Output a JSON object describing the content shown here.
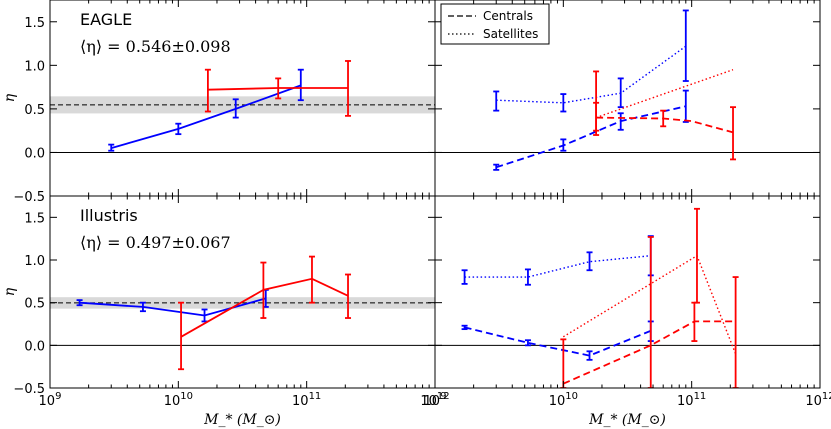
{
  "colors": {
    "blue": "#0000ff",
    "red": "#ff0000",
    "band": "#d9d9d9",
    "axis": "#000000"
  },
  "legend": {
    "centrals": "Centrals",
    "satellites": "Satellites"
  },
  "chart_data": {
    "type": "line",
    "x_scale": "log",
    "xlim": [
      1000000000.0,
      1000000000000.0
    ],
    "ylim": [
      -0.5,
      1.75
    ],
    "x_tick_labels": [
      "10^9",
      "10^10",
      "10^11",
      "10^12"
    ],
    "xlabel": "M_* (M_⊙)",
    "ylabel": "η",
    "panels": [
      {
        "id": "eagle-all",
        "title": "EAGLE",
        "eta_label": "⟨η⟩ = 0.546±0.098",
        "mean": 0.546,
        "err": 0.098,
        "y_ticks": [
          "−0.5",
          "0.0",
          "0.5",
          "1.0",
          "1.5"
        ],
        "series": [
          {
            "name": "blue-all",
            "color": "blue",
            "style": "solid",
            "x": [
              3000000000.0,
              10000000000.0,
              28000000000.0,
              90000000000.0
            ],
            "y": [
              0.05,
              0.27,
              0.5,
              0.77
            ],
            "lo": [
              0.02,
              0.21,
              0.4,
              0.6
            ],
            "hi": [
              0.09,
              0.33,
              0.61,
              0.95
            ]
          },
          {
            "name": "red-all",
            "color": "red",
            "style": "solid",
            "x": [
              17000000000.0,
              60000000000.0,
              210000000000.0
            ],
            "y": [
              0.72,
              0.74,
              0.74
            ],
            "lo": [
              0.47,
              0.62,
              0.42
            ],
            "hi": [
              0.95,
              0.85,
              1.05
            ]
          }
        ]
      },
      {
        "id": "eagle-split",
        "title": "",
        "legend": true,
        "y_ticks": [],
        "series": [
          {
            "name": "blue-sat",
            "color": "blue",
            "style": "dotted",
            "x": [
              3000000000.0,
              10000000000.0,
              28000000000.0,
              90000000000.0
            ],
            "y": [
              0.6,
              0.57,
              0.68,
              1.22
            ],
            "lo": [
              0.48,
              0.47,
              0.52,
              0.82
            ],
            "hi": [
              0.7,
              0.67,
              0.85,
              1.63
            ]
          },
          {
            "name": "blue-cen",
            "color": "blue",
            "style": "dashed",
            "x": [
              3000000000.0,
              10000000000.0,
              28000000000.0,
              90000000000.0
            ],
            "y": [
              -0.17,
              0.08,
              0.36,
              0.53
            ],
            "lo": [
              -0.2,
              0.02,
              0.26,
              0.35
            ],
            "hi": [
              -0.14,
              0.15,
              0.45,
              0.71
            ]
          },
          {
            "name": "red-sat",
            "color": "red",
            "style": "dotted",
            "x": [
              18000000000.0,
              210000000000.0
            ],
            "y": [
              0.4,
              0.95
            ],
            "lo": [
              0.2,
              0.95
            ],
            "hi": [
              0.93,
              0.95
            ]
          },
          {
            "name": "red-cen",
            "color": "red",
            "style": "dashed",
            "x": [
              18000000000.0,
              60000000000.0,
              100000000000.0,
              210000000000.0
            ],
            "y": [
              0.4,
              0.39,
              0.36,
              0.23
            ],
            "lo": [
              0.25,
              0.3,
              0.36,
              -0.08
            ],
            "hi": [
              0.57,
              0.48,
              0.36,
              0.52
            ]
          }
        ]
      },
      {
        "id": "illustris-all",
        "title": "Illustris",
        "eta_label": "⟨η⟩ = 0.497±0.067",
        "mean": 0.497,
        "err": 0.067,
        "y_ticks": [
          "−0.5",
          "0.0",
          "0.5",
          "1.0",
          "1.5"
        ],
        "series": [
          {
            "name": "blue-all",
            "color": "blue",
            "style": "solid",
            "x": [
              1700000000.0,
              5300000000.0,
              16000000000.0,
              48000000000.0
            ],
            "y": [
              0.5,
              0.45,
              0.35,
              0.55
            ],
            "lo": [
              0.47,
              0.4,
              0.28,
              0.45
            ],
            "hi": [
              0.53,
              0.5,
              0.42,
              0.65
            ]
          },
          {
            "name": "red-all",
            "color": "red",
            "style": "solid",
            "x": [
              10500000000.0,
              46000000000.0,
              110000000000.0,
              210000000000.0
            ],
            "y": [
              0.1,
              0.65,
              0.78,
              0.58
            ],
            "lo": [
              -0.28,
              0.32,
              0.5,
              0.32
            ],
            "hi": [
              0.5,
              0.97,
              1.04,
              0.83
            ]
          }
        ]
      },
      {
        "id": "illustris-split",
        "title": "",
        "legend": false,
        "y_ticks": [],
        "series": [
          {
            "name": "blue-sat",
            "color": "blue",
            "style": "dotted",
            "x": [
              1700000000.0,
              5300000000.0,
              16000000000.0,
              48000000000.0
            ],
            "y": [
              0.8,
              0.8,
              0.98,
              1.05
            ],
            "lo": [
              0.72,
              0.71,
              0.88,
              0.82
            ],
            "hi": [
              0.88,
              0.89,
              1.09,
              1.28
            ]
          },
          {
            "name": "blue-cen",
            "color": "blue",
            "style": "dashed",
            "x": [
              1700000000.0,
              5300000000.0,
              16000000000.0,
              48000000000.0
            ],
            "y": [
              0.21,
              0.03,
              -0.12,
              0.17
            ],
            "lo": [
              0.19,
              0.0,
              -0.17,
              0.05
            ],
            "hi": [
              0.23,
              0.06,
              -0.07,
              0.28
            ]
          },
          {
            "name": "red-sat",
            "color": "red",
            "style": "dotted",
            "x": [
              10000000000.0,
              110000000000.0,
              220000000000.0
            ],
            "y": [
              0.1,
              1.05,
              -0.1
            ],
            "lo": [
              0.1,
              0.5,
              -0.1
            ],
            "hi": [
              0.1,
              1.6,
              -0.1
            ]
          },
          {
            "name": "red-cen",
            "color": "red",
            "style": "dashed",
            "x": [
              10000000000.0,
              48000000000.0,
              105000000000.0,
              220000000000.0
            ],
            "y": [
              -0.45,
              0.0,
              0.28,
              0.28
            ],
            "lo": [
              -0.5,
              -0.5,
              0.05,
              -0.5
            ],
            "hi": [
              0.07,
              1.27,
              0.5,
              0.8
            ]
          }
        ]
      }
    ]
  }
}
